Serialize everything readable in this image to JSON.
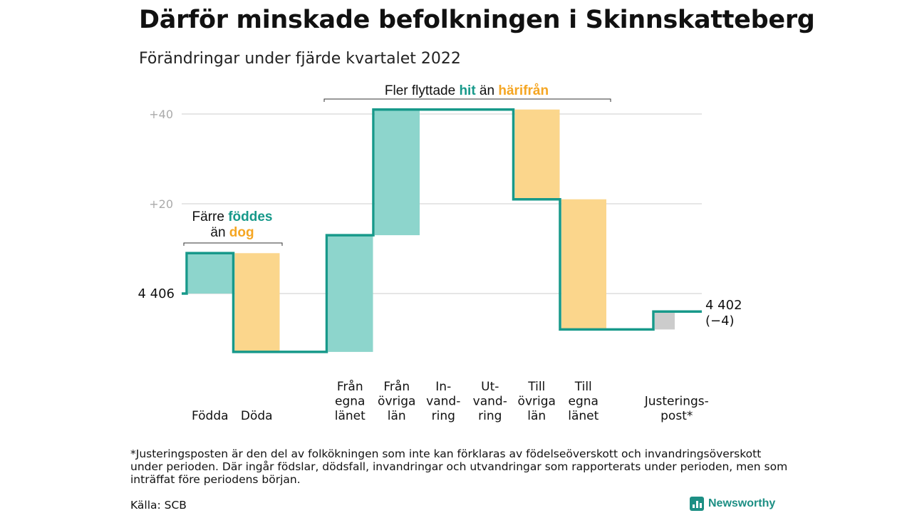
{
  "title": "Därför minskade befolkningen i Skinnskatteberg",
  "subtitle": "Förändringar under fjärde kvartalet 2022",
  "chart_data": {
    "type": "waterfall",
    "start_value": 4406,
    "start_label": "4 406",
    "end_label_value": "4 402",
    "end_label_change": "(−4)",
    "y_ticks": [
      {
        "value": 20,
        "label": "+20"
      },
      {
        "value": 40,
        "label": "+40"
      }
    ],
    "steps": [
      {
        "label_lines": [
          "Födda"
        ],
        "change": 9,
        "kind": "in"
      },
      {
        "label_lines": [
          "Döda"
        ],
        "change": -22,
        "kind": "out"
      },
      {
        "label_lines": [],
        "change": 0,
        "kind": "gap"
      },
      {
        "label_lines": [
          "Från",
          "egna",
          "länet"
        ],
        "change": 26,
        "kind": "in"
      },
      {
        "label_lines": [
          "Från",
          "övriga",
          "län"
        ],
        "change": 28,
        "kind": "in"
      },
      {
        "label_lines": [
          "In-",
          "vand-",
          "ring"
        ],
        "change": 0,
        "kind": "in"
      },
      {
        "label_lines": [
          "Ut-",
          "vand-",
          "ring"
        ],
        "change": 0,
        "kind": "out"
      },
      {
        "label_lines": [
          "Till",
          "övriga",
          "län"
        ],
        "change": -20,
        "kind": "out"
      },
      {
        "label_lines": [
          "Till",
          "egna",
          "länet"
        ],
        "change": -29,
        "kind": "out"
      },
      {
        "label_lines": [],
        "change": 0,
        "kind": "gap"
      },
      {
        "label_lines": [
          "Justerings-",
          "post*"
        ],
        "change": 4,
        "kind": "adjust"
      }
    ],
    "annotations": [
      {
        "lines": [
          [
            {
              "t": "Färre ",
              "s": "plain"
            },
            {
              "t": "föddes",
              "s": "teal"
            }
          ],
          [
            {
              "t": "än ",
              "s": "plain"
            },
            {
              "t": "dog",
              "s": "orange"
            }
          ]
        ]
      },
      {
        "lines": [
          [
            {
              "t": "Fler flyttade ",
              "s": "plain"
            },
            {
              "t": "hit",
              "s": "teal"
            },
            {
              "t": " än ",
              "s": "plain"
            },
            {
              "t": "härifrån",
              "s": "orange"
            }
          ]
        ]
      }
    ],
    "colors": {
      "in": "#8dd5cc",
      "out": "#fbd68c",
      "adjust": "#cccccc",
      "line": "#17998a",
      "grid": "#dddddd"
    }
  },
  "footnote": "*Justeringsposten är den del av folkökningen som inte kan förklaras av födelseöverskott och invandringsöverskott under perioden. Där ingår födslar, dödsfall, invandringar och utvandringar som rapporterats under perioden, men som inträffat före periodens början.",
  "source": "Källa: SCB",
  "logo_text": "Newsworthy"
}
